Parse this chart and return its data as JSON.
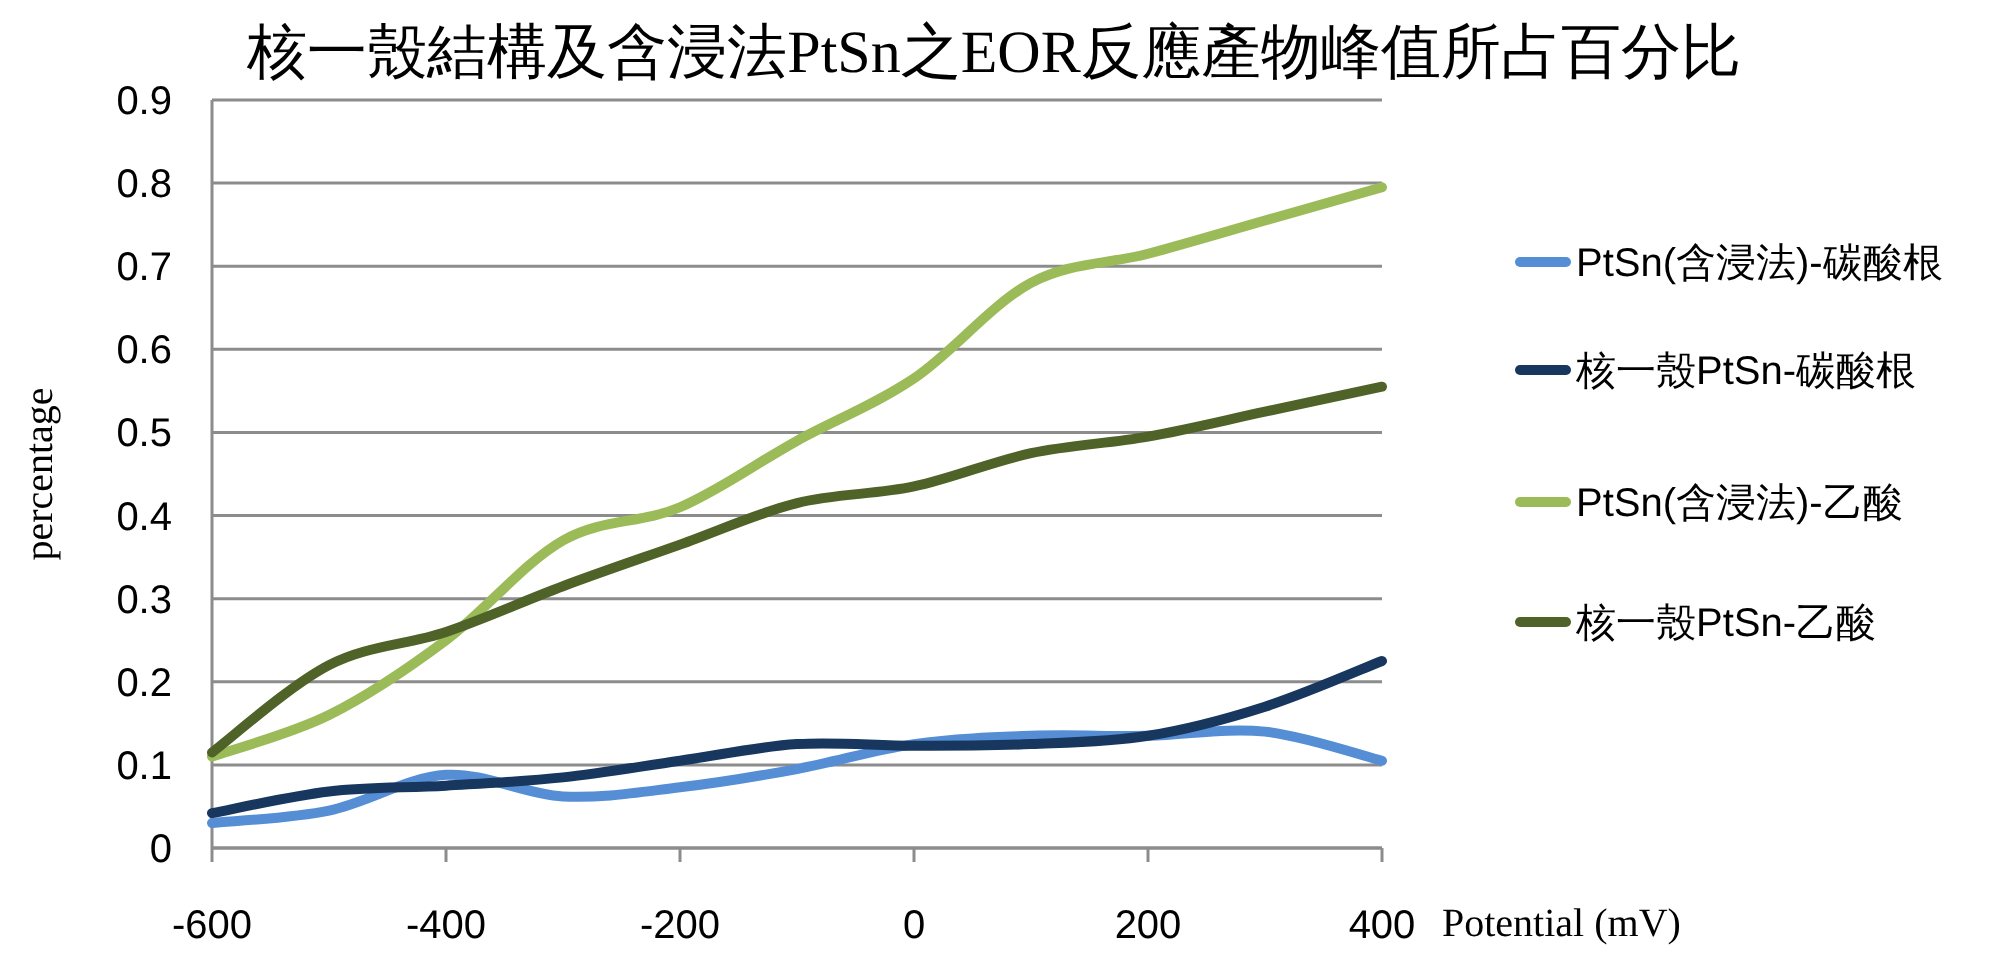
{
  "chart_data": {
    "type": "line",
    "title": "核一殼結構及含浸法PtSn之EOR反應產物峰值所占百分比",
    "xlabel": "Potential (mV)",
    "ylabel": "percentage",
    "x": [
      -600,
      -500,
      -400,
      -300,
      -200,
      -100,
      0,
      100,
      200,
      300,
      400
    ],
    "series": [
      {
        "name": "PtSn(含浸法)-碳酸根",
        "color": "#558ed5",
        "values": [
          0.03,
          0.045,
          0.088,
          0.062,
          0.073,
          0.095,
          0.125,
          0.135,
          0.135,
          0.14,
          0.105
        ]
      },
      {
        "name": "核一殼PtSn-碳酸根",
        "color": "#17375e",
        "values": [
          0.042,
          0.068,
          0.075,
          0.085,
          0.105,
          0.125,
          0.123,
          0.125,
          0.135,
          0.17,
          0.225
        ]
      },
      {
        "name": "PtSn(含浸法)-乙酸",
        "color": "#9bbb59",
        "values": [
          0.11,
          0.16,
          0.25,
          0.37,
          0.41,
          0.49,
          0.565,
          0.68,
          0.715,
          0.755,
          0.795
        ]
      },
      {
        "name": "核一殼PtSn-乙酸",
        "color": "#4f6228",
        "values": [
          0.115,
          0.22,
          0.26,
          0.315,
          0.365,
          0.415,
          0.435,
          0.475,
          0.495,
          0.525,
          0.555
        ]
      }
    ],
    "xlim": [
      -600,
      400
    ],
    "xticks": [
      -600,
      -400,
      -200,
      0,
      200,
      400
    ],
    "ylim": [
      0,
      0.9
    ],
    "yticks": [
      0,
      0.1,
      0.2,
      0.3,
      0.4,
      0.5,
      0.6,
      0.7,
      0.8,
      0.9
    ],
    "grid": "y",
    "legend": "right",
    "marker": "none",
    "line_style": "solid"
  }
}
